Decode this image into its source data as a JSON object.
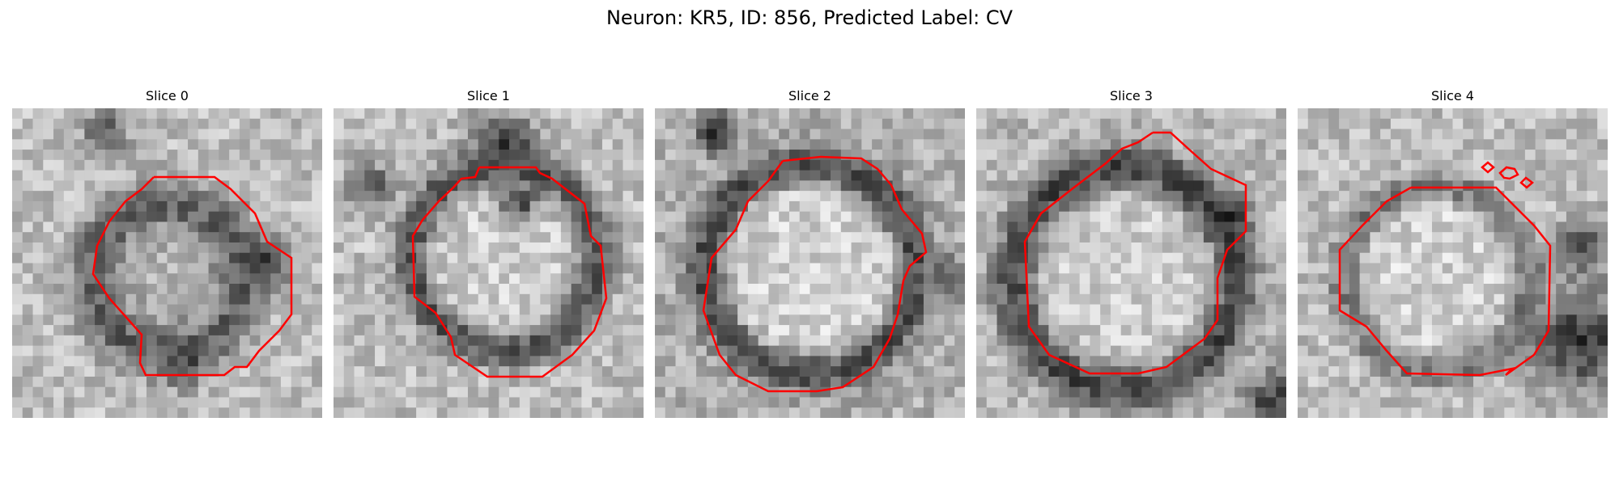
{
  "figure": {
    "title": "Neuron: KR5, ID: 856, Predicted Label: CV"
  },
  "panels": [
    {
      "title": "Slice 0"
    },
    {
      "title": "Slice 1"
    },
    {
      "title": "Slice 2"
    },
    {
      "title": "Slice 3"
    },
    {
      "title": "Slice 4"
    }
  ],
  "colors": {
    "contour": "#ff0000",
    "colormap": "grayscale"
  }
}
